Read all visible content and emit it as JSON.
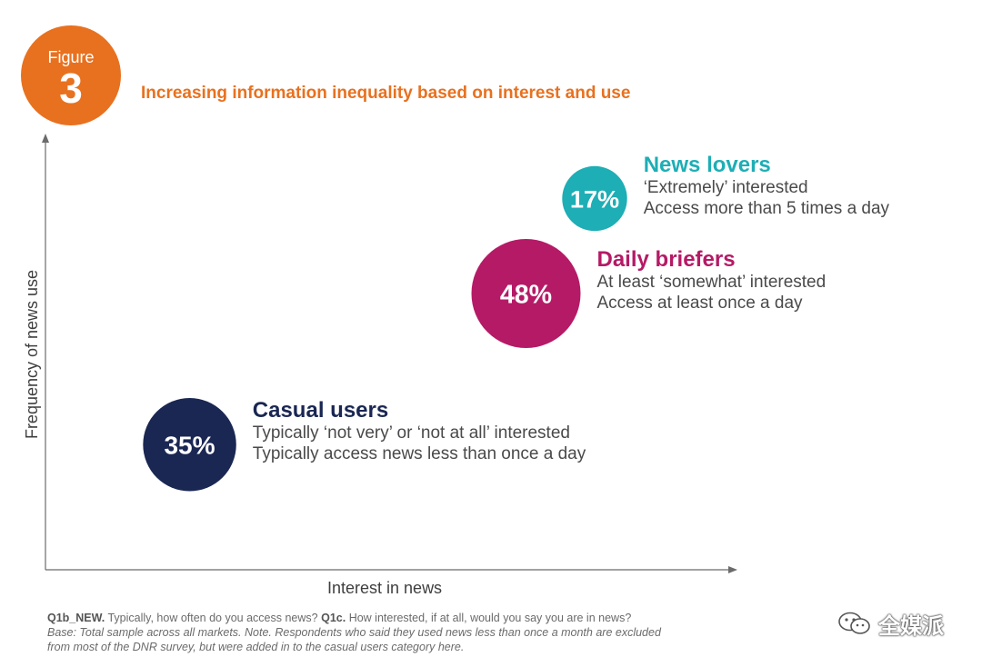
{
  "figure": {
    "label": "Figure",
    "number": "3",
    "title": "Increasing information inequality based on interest and use"
  },
  "chart_data": {
    "type": "scatter",
    "title": "Increasing information inequality based on interest and use",
    "xlabel": "Interest in news",
    "ylabel": "Frequency of news use",
    "grid": false,
    "xlim": [
      0,
      100
    ],
    "ylim": [
      0,
      100
    ],
    "points": [
      {
        "name": "Casual users",
        "value": 35,
        "display": "35%",
        "x": 21,
        "y": 29,
        "color": "#1a2753",
        "desc1": "Typically ‘not very’ or ‘not at all’ interested",
        "desc2": "Typically access news less than once a day"
      },
      {
        "name": "Daily briefers",
        "value": 48,
        "display": "48%",
        "x": 70,
        "y": 64,
        "color": "#b51a66",
        "desc1": "At least ‘somewhat’ interested",
        "desc2": "Access at least once a day"
      },
      {
        "name": "News lovers",
        "value": 17,
        "display": "17%",
        "x": 80,
        "y": 86,
        "color": "#1eaeb5",
        "desc1": "‘Extremely’ interested",
        "desc2": "Access more than 5 times a day"
      }
    ]
  },
  "footnote": {
    "q1_code": "Q1b_NEW.",
    "q1_text": "Typically, how often do you access news?",
    "q2_code": "Q1c.",
    "q2_text": "How interested, if at all, would you say you are in news?",
    "base_line": "Base: Total sample across all markets. Note. Respondents who said they used news less than once a month are excluded",
    "note_line": "from most of the DNR survey, but were added in to the casual users category here."
  },
  "watermark": {
    "text": "全媒派",
    "icon": "wechat-icon"
  }
}
